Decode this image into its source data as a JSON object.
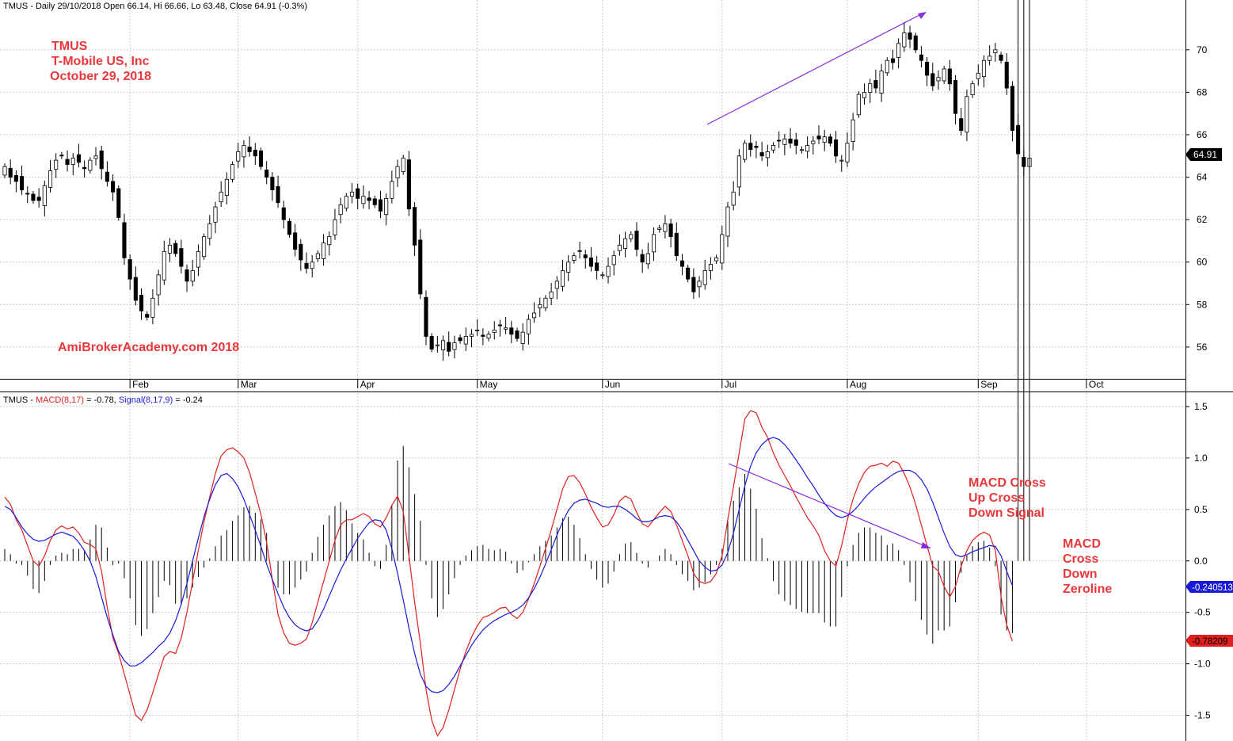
{
  "chart_data": [
    {
      "type": "candlestick",
      "panel": "price",
      "header": "TMUS - Daily 29/10/2018 Open 66.14, Hi 66.66, Lo 63.48, Close 64.91 (-0.3%)",
      "annotations": [
        "TMUS",
        "T-Mobile US, Inc",
        "October 29, 2018",
        "AmiBrokerAcademy.com  2018"
      ],
      "last_price_label": "64.91",
      "colors": {
        "up_body": "#ffffff",
        "down_body": "#000000",
        "wick": "#000000",
        "note": "#e8383b",
        "trendline": "#8b2be2"
      },
      "grid": true,
      "ylim": [
        54.8,
        71.6
      ],
      "y_ticks": [
        56,
        58,
        60,
        62,
        64,
        66,
        68,
        70
      ],
      "x_ticks": [
        {
          "label": "Feb",
          "index": 22
        },
        {
          "label": "Mar",
          "index": 41
        },
        {
          "label": "Apr",
          "index": 62
        },
        {
          "label": "May",
          "index": 83
        },
        {
          "label": "Jun",
          "index": 105
        },
        {
          "label": "Jul",
          "index": 126
        },
        {
          "label": "Aug",
          "index": 148
        },
        {
          "label": "Sep",
          "index": 171
        },
        {
          "label": "Oct",
          "index": 190
        }
      ],
      "closes": [
        64.5,
        64.0,
        63.8,
        63.4,
        63.2,
        62.9,
        62.9,
        63.6,
        64.3,
        64.8,
        65.0,
        64.6,
        64.9,
        64.7,
        64.4,
        64.8,
        65.0,
        64.4,
        63.8,
        63.3,
        62.1,
        60.2,
        59.2,
        58.2,
        57.7,
        57.4,
        58.3,
        59.4,
        60.5,
        60.8,
        60.4,
        59.8,
        59.1,
        59.6,
        60.5,
        61.2,
        61.8,
        62.6,
        63.3,
        63.9,
        64.6,
        65.2,
        65.5,
        65.2,
        65.0,
        64.5,
        64.0,
        63.4,
        62.8,
        62.0,
        61.3,
        60.6,
        60.1,
        59.7,
        60.0,
        60.4,
        60.9,
        61.2,
        62.0,
        62.7,
        63.1,
        63.3,
        63.0,
        63.1,
        62.9,
        62.7,
        62.4,
        63.0,
        63.8,
        64.5,
        64.9,
        62.5,
        60.8,
        58.5,
        56.5,
        55.9,
        56.1,
        56.3,
        55.8,
        56.2,
        56.3,
        56.5,
        56.6,
        56.8,
        56.5,
        56.6,
        56.8,
        57.0,
        56.9,
        56.6,
        56.4,
        56.7,
        57.3,
        57.6,
        58.0,
        58.3,
        58.6,
        59.1,
        59.6,
        60.0,
        60.3,
        60.5,
        60.2,
        59.8,
        59.6,
        59.4,
        59.8,
        60.3,
        60.8,
        61.1,
        61.3,
        60.6,
        60.0,
        60.4,
        61.3,
        61.6,
        61.8,
        61.2,
        60.3,
        59.8,
        59.2,
        58.6,
        59.1,
        59.6,
        59.9,
        60.2,
        61.3,
        62.6,
        63.3,
        65.0,
        65.6,
        65.3,
        65.4,
        65.0,
        65.2,
        65.5,
        65.7,
        65.8,
        65.6,
        65.5,
        65.3,
        65.5,
        65.7,
        65.8,
        65.9,
        65.6,
        65.0,
        64.8,
        65.6,
        66.7,
        67.9,
        68.0,
        68.4,
        68.2,
        69.0,
        69.5,
        69.4,
        70.3,
        70.8,
        70.5,
        70.0,
        69.5,
        68.8,
        68.3,
        68.7,
        69.1,
        68.4,
        67.0,
        66.2,
        67.8,
        68.4,
        68.9,
        69.5,
        69.7,
        70.0,
        69.5,
        68.2,
        66.2,
        65.1,
        64.5,
        64.9
      ]
    },
    {
      "type": "line",
      "panel": "macd",
      "header": {
        "prefix": "TMUS - ",
        "macd_label": "MACD(8,17)",
        "macd_value": " = -0.78, ",
        "signal_label": "Signal(8,17,9)",
        "signal_value": " = -0.24"
      },
      "series": [
        {
          "name": "MACD(8,17)",
          "color": "#e0201e",
          "values": [
            0.62,
            0.55,
            0.4,
            0.3,
            0.15,
            0.0,
            -0.05,
            0.05,
            0.2,
            0.3,
            0.34,
            0.31,
            0.33,
            0.27,
            0.18,
            0.16,
            0.12,
            -0.1,
            -0.45,
            -0.75,
            -0.9,
            -1.1,
            -1.3,
            -1.5,
            -1.55,
            -1.45,
            -1.28,
            -1.1,
            -0.93,
            -0.88,
            -0.9,
            -0.75,
            -0.5,
            -0.2,
            0.1,
            0.38,
            0.62,
            0.85,
            1.02,
            1.08,
            1.1,
            1.06,
            1.0,
            0.86,
            0.66,
            0.45,
            0.18,
            -0.18,
            -0.52,
            -0.7,
            -0.8,
            -0.82,
            -0.8,
            -0.76,
            -0.6,
            -0.4,
            -0.2,
            0.0,
            0.2,
            0.35,
            0.4,
            0.4,
            0.43,
            0.46,
            0.43,
            0.36,
            0.33,
            0.42,
            0.54,
            0.63,
            0.48,
            0.05,
            -0.4,
            -0.8,
            -1.25,
            -1.55,
            -1.7,
            -1.62,
            -1.45,
            -1.25,
            -1.05,
            -0.88,
            -0.74,
            -0.63,
            -0.55,
            -0.53,
            -0.5,
            -0.46,
            -0.45,
            -0.52,
            -0.56,
            -0.5,
            -0.37,
            -0.22,
            -0.05,
            0.12,
            0.3,
            0.5,
            0.7,
            0.82,
            0.83,
            0.76,
            0.65,
            0.52,
            0.42,
            0.33,
            0.35,
            0.45,
            0.58,
            0.63,
            0.6,
            0.47,
            0.36,
            0.33,
            0.4,
            0.47,
            0.53,
            0.48,
            0.35,
            0.2,
            0.05,
            -0.12,
            -0.2,
            -0.22,
            -0.2,
            -0.12,
            0.05,
            0.4,
            0.72,
            1.05,
            1.38,
            1.46,
            1.44,
            1.3,
            1.2,
            1.05,
            0.93,
            0.83,
            0.73,
            0.62,
            0.52,
            0.42,
            0.34,
            0.25,
            0.1,
            0.0,
            -0.05,
            0.15,
            0.4,
            0.6,
            0.75,
            0.86,
            0.92,
            0.93,
            0.95,
            0.92,
            0.97,
            0.95,
            0.85,
            0.72,
            0.55,
            0.35,
            0.15,
            -0.05,
            -0.1,
            -0.25,
            -0.35,
            -0.25,
            -0.05,
            0.1,
            0.2,
            0.25,
            0.28,
            0.25,
            0.1,
            -0.35,
            -0.62,
            -0.78
          ]
        },
        {
          "name": "Signal(8,17,9)",
          "color": "#1a1ad6",
          "values": [
            0.53,
            0.5,
            0.42,
            0.33,
            0.26,
            0.21,
            0.19,
            0.2,
            0.23,
            0.26,
            0.28,
            0.26,
            0.24,
            0.18,
            0.1,
            0.0,
            -0.15,
            -0.35,
            -0.55,
            -0.72,
            -0.88,
            -0.97,
            -1.02,
            -1.02,
            -0.99,
            -0.94,
            -0.89,
            -0.83,
            -0.78,
            -0.7,
            -0.58,
            -0.42,
            -0.22,
            0.0,
            0.22,
            0.43,
            0.6,
            0.74,
            0.83,
            0.85,
            0.8,
            0.72,
            0.6,
            0.45,
            0.3,
            0.14,
            -0.03,
            -0.18,
            -0.32,
            -0.45,
            -0.55,
            -0.62,
            -0.66,
            -0.68,
            -0.66,
            -0.58,
            -0.47,
            -0.34,
            -0.21,
            -0.09,
            0.02,
            0.12,
            0.22,
            0.3,
            0.37,
            0.4,
            0.39,
            0.3,
            0.12,
            -0.12,
            -0.38,
            -0.65,
            -0.9,
            -1.1,
            -1.22,
            -1.27,
            -1.28,
            -1.26,
            -1.2,
            -1.12,
            -1.02,
            -0.92,
            -0.82,
            -0.74,
            -0.67,
            -0.62,
            -0.58,
            -0.55,
            -0.52,
            -0.5,
            -0.47,
            -0.43,
            -0.36,
            -0.27,
            -0.16,
            -0.03,
            0.11,
            0.25,
            0.38,
            0.49,
            0.56,
            0.59,
            0.6,
            0.58,
            0.56,
            0.53,
            0.52,
            0.53,
            0.53,
            0.5,
            0.46,
            0.41,
            0.38,
            0.38,
            0.4,
            0.43,
            0.44,
            0.43,
            0.38,
            0.3,
            0.2,
            0.1,
            0.0,
            -0.06,
            -0.1,
            -0.09,
            -0.04,
            0.08,
            0.27,
            0.5,
            0.73,
            0.92,
            1.05,
            1.13,
            1.18,
            1.2,
            1.18,
            1.13,
            1.06,
            0.98,
            0.9,
            0.81,
            0.73,
            0.64,
            0.56,
            0.49,
            0.44,
            0.42,
            0.44,
            0.48,
            0.54,
            0.61,
            0.67,
            0.72,
            0.76,
            0.8,
            0.84,
            0.87,
            0.88,
            0.88,
            0.85,
            0.79,
            0.7,
            0.57,
            0.42,
            0.27,
            0.14,
            0.06,
            0.04,
            0.06,
            0.09,
            0.11,
            0.13,
            0.15,
            0.14,
            0.05,
            -0.1,
            -0.24
          ]
        }
      ],
      "histogram": "MACD minus Signal (vertical bars)",
      "ylim": [
        -1.75,
        1.6
      ],
      "y_ticks": [
        "1.5",
        "1.0",
        "0.5",
        "0.0",
        "-0.5",
        "-1.0",
        "-1.5"
      ],
      "value_labels": [
        {
          "text": "-0.240513",
          "bg": "#1a1ad6"
        },
        {
          "text": "-0.78209",
          "bg": "#e0201e"
        }
      ],
      "annotations": [
        "MACD Cross",
        "Up Cross",
        "Down Signal",
        "MACD",
        "Cross",
        "Down",
        "Zeroline"
      ]
    }
  ]
}
